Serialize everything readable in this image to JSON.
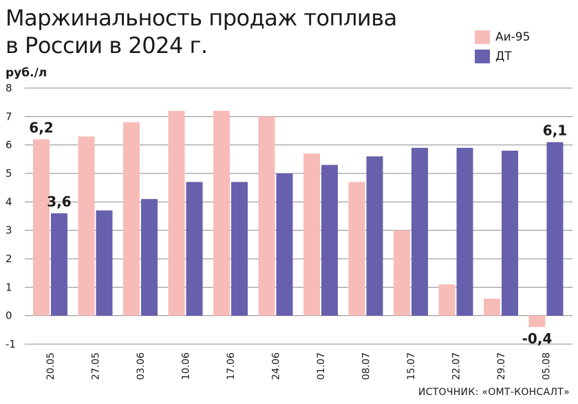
{
  "chart_data": {
    "type": "bar",
    "title": [
      "Маржинальность продаж топлива",
      "в России в 2024 г."
    ],
    "ylabel": "руб./л",
    "ylim": [
      -1,
      8
    ],
    "yticks": [
      "8",
      "7",
      "6",
      "5",
      "4",
      "3",
      "2",
      "1",
      "0",
      "-1"
    ],
    "grid": true,
    "legend_position": "top-right",
    "categories": [
      "20.05",
      "27.05",
      "03.06",
      "10.06",
      "17.06",
      "24.06",
      "01.07",
      "08.07",
      "15.07",
      "22.07",
      "29.07",
      "05.08"
    ],
    "series": [
      {
        "name": "Аи-95",
        "color": "#f7bcb8",
        "values": [
          6.2,
          6.3,
          6.8,
          7.2,
          7.2,
          7.0,
          5.7,
          4.7,
          3.0,
          1.1,
          0.6,
          -0.4
        ]
      },
      {
        "name": "ДТ",
        "color": "#6760ad",
        "values": [
          3.6,
          3.7,
          4.1,
          4.7,
          4.7,
          5.0,
          5.3,
          5.6,
          5.9,
          5.9,
          5.8,
          6.1
        ]
      }
    ],
    "data_labels": [
      {
        "text": "6,2",
        "series": 0,
        "index": 0
      },
      {
        "text": "3,6",
        "series": 1,
        "index": 0
      },
      {
        "text": "-0,4",
        "series": 0,
        "index": 11
      },
      {
        "text": "6,1",
        "series": 1,
        "index": 11
      }
    ],
    "source": "ИСТОЧНИК: «ОМТ-КОНСАЛТ»"
  }
}
